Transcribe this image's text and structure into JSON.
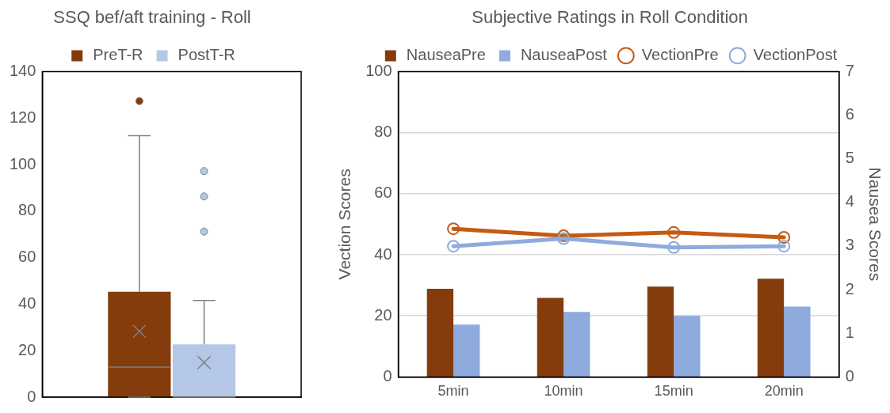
{
  "chart_data": [
    {
      "type": "box",
      "title": "SSQ bef/aft training - Roll",
      "categories": [
        null
      ],
      "legend": "top",
      "grid": false,
      "tick_labels": "y",
      "ylim": [
        0,
        140
      ],
      "yticks": [
        0,
        20,
        40,
        60,
        80,
        100,
        120,
        140
      ],
      "series": [
        {
          "name": "PreT-R",
          "color": "#843c0c",
          "boxes": [
            {
              "low": 0,
              "q1": 0,
              "median": 12.9,
              "q3": 45.3,
              "high": 112.4,
              "mean": 28.3,
              "outliers": [
                127.3
              ]
            }
          ]
        },
        {
          "name": "PostT-R",
          "color": "#b4c7e7",
          "boxes": [
            {
              "low": 0,
              "q1": 0,
              "median": 0,
              "q3": 22.7,
              "high": 41.6,
              "mean": 14.9,
              "outliers": [
                71.2,
                86.3,
                97.2
              ]
            }
          ]
        }
      ]
    },
    {
      "type": "bar",
      "title": "Subjective Ratings in Roll Condition",
      "categories": [
        "5min",
        "10min",
        "15min",
        "20min"
      ],
      "legend": "top",
      "grid": "y",
      "marker": "circle",
      "ylabel": "Vection Scores",
      "y2label": "Nausea Scores",
      "ylim": [
        0,
        100
      ],
      "yticks": [
        0,
        20,
        40,
        60,
        80,
        100
      ],
      "y2lim": [
        0,
        7
      ],
      "y2ticks": [
        0,
        1,
        2,
        3,
        4,
        5,
        6,
        7
      ],
      "series": [
        {
          "name": "NauseaPre",
          "type": "bar",
          "axis": "y2",
          "color": "#843c0c",
          "values": [
            2.02,
            1.81,
            2.07,
            2.25
          ]
        },
        {
          "name": "NauseaPost",
          "type": "bar",
          "axis": "y2",
          "color": "#8faadc",
          "values": [
            1.2,
            1.49,
            1.4,
            1.61
          ]
        },
        {
          "name": "VectionPre",
          "type": "line",
          "color": "#c55a11",
          "values": [
            48.5,
            46.2,
            47.3,
            45.7
          ]
        },
        {
          "name": "VectionPost",
          "type": "line",
          "color": "#8faadc",
          "values": [
            42.8,
            45.3,
            42.4,
            42.8
          ]
        }
      ]
    }
  ]
}
